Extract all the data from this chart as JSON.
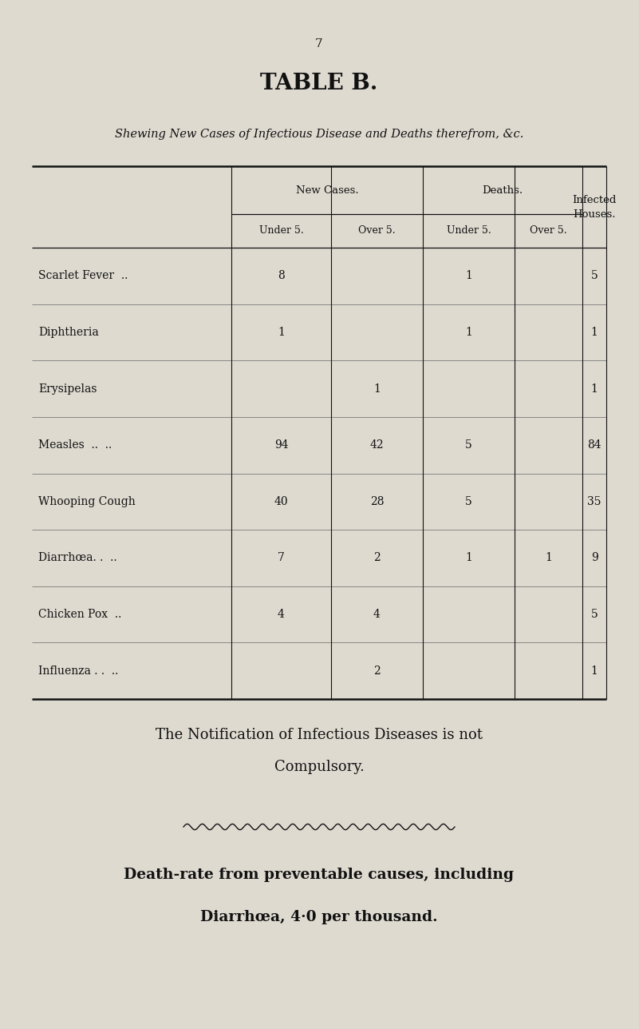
{
  "page_number": "7",
  "title": "TABLE B.",
  "subtitle": "Shewing New Cases of Infectious Disease and Deaths therefrom, &c.",
  "rows": [
    {
      "disease": "Scarlet Fever  ..",
      "new_under5": "8",
      "new_over5": "",
      "death_under5": "1",
      "death_over5": "",
      "infected": "5"
    },
    {
      "disease": "Diphtheria",
      "new_under5": "1",
      "new_over5": "",
      "death_under5": "1",
      "death_over5": "",
      "infected": "1"
    },
    {
      "disease": "Erysipelas",
      "new_under5": "",
      "new_over5": "1",
      "death_under5": "",
      "death_over5": "",
      "infected": "1"
    },
    {
      "disease": "Measles  ..  ..",
      "new_under5": "94",
      "new_over5": "42",
      "death_under5": "5",
      "death_over5": "",
      "infected": "84"
    },
    {
      "disease": "Whooping Cough",
      "new_under5": "40",
      "new_over5": "28",
      "death_under5": "5",
      "death_over5": "",
      "infected": "35"
    },
    {
      "disease": "Diarrhœa. .  ..",
      "new_under5": "7",
      "new_over5": "2",
      "death_under5": "1",
      "death_over5": "1",
      "infected": "9"
    },
    {
      "disease": "Chicken Pox  ..",
      "new_under5": "4",
      "new_over5": "4",
      "death_under5": "",
      "death_over5": "",
      "infected": "5"
    },
    {
      "disease": "Influenza . .  ..",
      "new_under5": "",
      "new_over5": "2",
      "death_under5": "",
      "death_over5": "",
      "infected": "1"
    }
  ],
  "footer_text1": "The Notification of Infectious Diseases is not",
  "footer_text2": "Compulsory.",
  "footer_text3": "Death-rate from preventable causes, including",
  "footer_text4": "Diarrhœa, 4·0 per thousand.",
  "bg_color": "#dedad0",
  "text_color": "#111111",
  "figsize": [
    8.01,
    12.88
  ],
  "dpi": 100
}
